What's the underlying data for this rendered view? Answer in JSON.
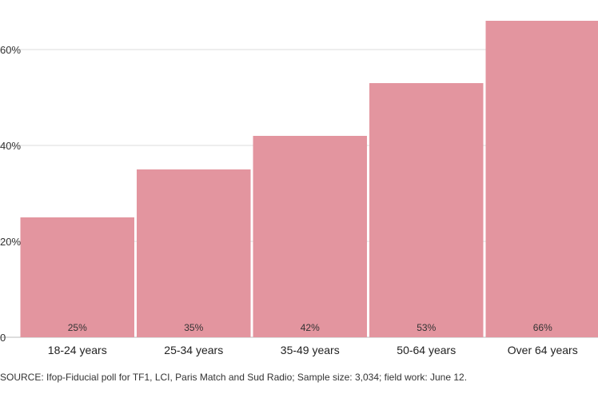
{
  "chart_data": {
    "type": "bar",
    "categories": [
      "18-24 years",
      "25-34 years",
      "35-49 years",
      "50-64 years",
      "Over 64 years"
    ],
    "values": [
      25,
      35,
      42,
      53,
      66
    ],
    "value_labels": [
      "25%",
      "35%",
      "42%",
      "53%",
      "66%"
    ],
    "ytick_values": [
      0,
      20,
      40,
      60
    ],
    "ytick_labels": [
      "0",
      "20%",
      "40%",
      "60%"
    ],
    "ylim": [
      0,
      68
    ],
    "grid": true,
    "bar_color": "#e3959f",
    "grid_color": "#dddddd"
  },
  "source": "SOURCE: Ifop-Fiducial poll for TF1, LCI, Paris Match and Sud Radio; Sample size: 3,034; field work: June 12."
}
